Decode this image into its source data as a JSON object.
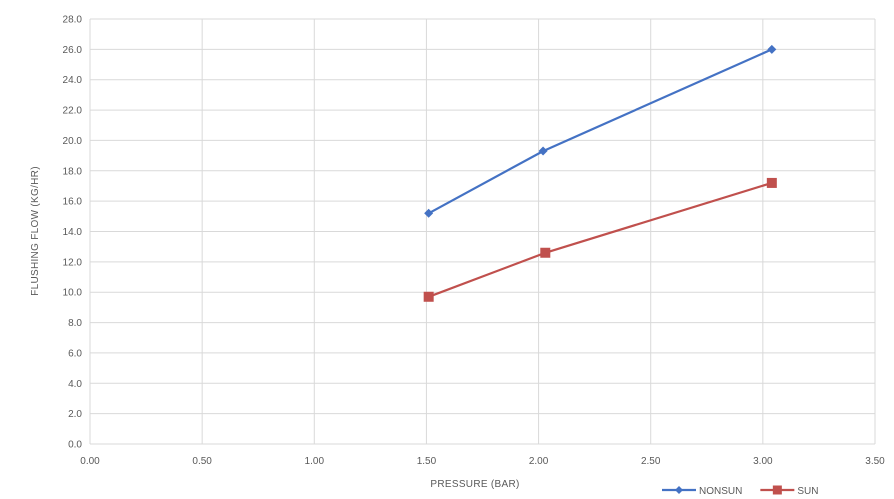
{
  "chart_data": {
    "type": "line",
    "title": "",
    "xlabel": "PRESSURE (BAR)",
    "ylabel": "FLUSHING FLOW (KG/HR)",
    "xlim": [
      0,
      3.5
    ],
    "ylim": [
      0,
      28
    ],
    "x_ticks": [
      "0.00",
      "0.50",
      "1.00",
      "1.50",
      "2.00",
      "2.50",
      "3.00",
      "3.50"
    ],
    "y_ticks": [
      "0.0",
      "2.0",
      "4.0",
      "6.0",
      "8.0",
      "10.0",
      "12.0",
      "14.0",
      "16.0",
      "18.0",
      "20.0",
      "22.0",
      "24.0",
      "26.0",
      "28.0"
    ],
    "grid": true,
    "legend_position": "bottom-right",
    "series": [
      {
        "name": "NONSUN",
        "color": "#4472c4",
        "marker": "diamond",
        "points": [
          {
            "x": 1.51,
            "y": 15.2
          },
          {
            "x": 2.02,
            "y": 19.3
          },
          {
            "x": 3.04,
            "y": 26.0
          }
        ]
      },
      {
        "name": "SUN",
        "color": "#c0504d",
        "marker": "square",
        "points": [
          {
            "x": 1.51,
            "y": 9.7
          },
          {
            "x": 2.03,
            "y": 12.6
          },
          {
            "x": 3.04,
            "y": 17.2
          }
        ]
      }
    ]
  }
}
